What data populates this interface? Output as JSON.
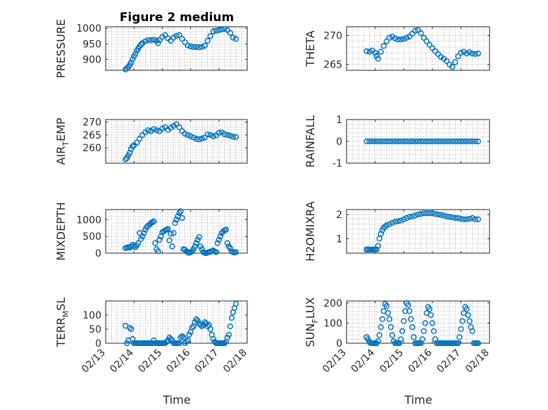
{
  "figure_title": "Figure 2 medium",
  "x_label": "Time",
  "x_ticks": [
    "02/13",
    "02/14",
    "02/15",
    "02/16",
    "02/17",
    "02/18"
  ],
  "chart_data": [
    {
      "type": "scatter",
      "ylabel": "PRESSURE",
      "title": "Figure 2 medium",
      "xlim": [
        0,
        5
      ],
      "ylim": [
        865,
        1005
      ],
      "yticks": [
        900,
        950,
        1000
      ],
      "grid": true,
      "x": [
        0.7,
        0.75,
        0.8,
        0.85,
        0.9,
        0.95,
        1.0,
        1.05,
        1.1,
        1.15,
        1.2,
        1.25,
        1.3,
        1.4,
        1.5,
        1.6,
        1.7,
        1.8,
        1.85,
        1.9,
        2.0,
        2.1,
        2.2,
        2.3,
        2.4,
        2.5,
        2.6,
        2.7,
        2.8,
        2.9,
        3.0,
        3.1,
        3.2,
        3.3,
        3.4,
        3.5,
        3.6,
        3.7,
        3.8,
        3.9,
        4.0,
        4.1,
        4.2,
        4.3,
        4.4,
        4.5,
        4.6
      ],
      "y": [
        868,
        872,
        876,
        882,
        890,
        900,
        910,
        918,
        928,
        935,
        942,
        948,
        952,
        958,
        962,
        962,
        963,
        960,
        952,
        962,
        972,
        978,
        968,
        960,
        970,
        976,
        978,
        966,
        955,
        945,
        942,
        940,
        940,
        939,
        940,
        944,
        960,
        975,
        990,
        992,
        994,
        996,
        998,
        994,
        985,
        970,
        966
      ]
    },
    {
      "type": "scatter",
      "ylabel": "THETA",
      "xlim": [
        0,
        5
      ],
      "ylim": [
        264,
        271.5
      ],
      "yticks": [
        265,
        270
      ],
      "grid": true,
      "x": [
        0.7,
        0.8,
        0.9,
        1.0,
        1.05,
        1.1,
        1.2,
        1.3,
        1.4,
        1.5,
        1.6,
        1.7,
        1.8,
        1.9,
        2.0,
        2.1,
        2.2,
        2.3,
        2.4,
        2.5,
        2.6,
        2.7,
        2.8,
        2.9,
        3.0,
        3.1,
        3.2,
        3.3,
        3.4,
        3.5,
        3.6,
        3.7,
        3.8,
        3.9,
        4.0,
        4.1,
        4.2,
        4.3,
        4.4,
        4.5,
        4.6
      ],
      "y": [
        267.3,
        267.2,
        267.4,
        267.0,
        266.5,
        266.0,
        267.2,
        268.2,
        269.0,
        269.6,
        269.8,
        269.5,
        269.3,
        269.3,
        269.4,
        269.6,
        269.8,
        270.3,
        270.8,
        270.9,
        270.4,
        269.6,
        269.0,
        268.4,
        267.8,
        267.3,
        266.8,
        266.3,
        266.0,
        265.6,
        265.0,
        264.6,
        265.4,
        266.4,
        267.0,
        267.2,
        266.9,
        267.1,
        266.9,
        266.8,
        266.9
      ]
    },
    {
      "type": "scatter",
      "ylabel": "AIR_TEMP",
      "xlim": [
        0,
        5
      ],
      "ylim": [
        254,
        271
      ],
      "yticks": [
        260,
        265,
        270
      ],
      "grid": true,
      "x": [
        0.7,
        0.75,
        0.8,
        0.85,
        0.9,
        0.95,
        1.0,
        1.1,
        1.2,
        1.3,
        1.4,
        1.5,
        1.6,
        1.7,
        1.8,
        1.9,
        2.0,
        2.1,
        2.2,
        2.3,
        2.4,
        2.5,
        2.6,
        2.7,
        2.8,
        2.9,
        3.0,
        3.1,
        3.2,
        3.3,
        3.4,
        3.5,
        3.6,
        3.7,
        3.8,
        3.9,
        4.0,
        4.1,
        4.2,
        4.3,
        4.4,
        4.5,
        4.6
      ],
      "y": [
        255.5,
        256.0,
        257.0,
        258.0,
        259.5,
        260.5,
        261.0,
        262.0,
        263.5,
        265.0,
        266.0,
        266.8,
        266.5,
        267.3,
        266.8,
        266.5,
        267.5,
        268.0,
        267.0,
        267.8,
        268.5,
        269.2,
        268.0,
        266.5,
        265.5,
        265.0,
        264.5,
        264.0,
        263.5,
        263.3,
        263.6,
        264.0,
        265.2,
        265.0,
        264.5,
        264.8,
        265.8,
        266.0,
        265.3,
        265.0,
        264.7,
        264.3,
        264.2
      ]
    },
    {
      "type": "scatter",
      "ylabel": "RAINFALL",
      "xlim": [
        0,
        5
      ],
      "ylim": [
        -1,
        1
      ],
      "yticks": [
        -1,
        0,
        1
      ],
      "grid": true,
      "x": [
        0.7,
        0.8,
        0.9,
        1.0,
        1.1,
        1.2,
        1.3,
        1.4,
        1.5,
        1.6,
        1.7,
        1.8,
        1.9,
        2.0,
        2.1,
        2.2,
        2.3,
        2.4,
        2.5,
        2.6,
        2.7,
        2.8,
        2.9,
        3.0,
        3.1,
        3.2,
        3.3,
        3.4,
        3.5,
        3.6,
        3.7,
        3.8,
        3.9,
        4.0,
        4.1,
        4.2,
        4.3,
        4.4,
        4.5,
        4.6
      ],
      "y": [
        0,
        0,
        0,
        0,
        0,
        0,
        0,
        0,
        0,
        0,
        0,
        0,
        0,
        0,
        0,
        0,
        0,
        0,
        0,
        0,
        0,
        0,
        0,
        0,
        0,
        0,
        0,
        0,
        0,
        0,
        0,
        0,
        0,
        0,
        0,
        0,
        0,
        0,
        0,
        0
      ]
    },
    {
      "type": "scatter",
      "ylabel": "MIXDEPTH",
      "xlim": [
        0,
        5
      ],
      "ylim": [
        0,
        1300
      ],
      "yticks": [
        0,
        500,
        1000
      ],
      "grid": true,
      "x": [
        0.7,
        0.75,
        0.8,
        0.85,
        0.9,
        0.95,
        1.0,
        1.05,
        1.1,
        1.15,
        1.2,
        1.25,
        1.3,
        1.35,
        1.4,
        1.45,
        1.5,
        1.55,
        1.6,
        1.65,
        1.7,
        1.75,
        1.8,
        1.85,
        1.9,
        1.95,
        2.0,
        2.05,
        2.1,
        2.15,
        2.2,
        2.25,
        2.3,
        2.35,
        2.4,
        2.45,
        2.5,
        2.55,
        2.6,
        2.65,
        2.7,
        2.75,
        2.8,
        2.85,
        2.9,
        2.95,
        3.0,
        3.05,
        3.1,
        3.15,
        3.2,
        3.25,
        3.3,
        3.35,
        3.4,
        3.45,
        3.5,
        3.55,
        3.6,
        3.65,
        3.7,
        3.75,
        3.8,
        3.85,
        3.9,
        3.95,
        4.0,
        4.05,
        4.1,
        4.15,
        4.2,
        4.25,
        4.3,
        4.35,
        4.4,
        4.45,
        4.5,
        4.55,
        4.6
      ],
      "y": [
        150,
        170,
        180,
        160,
        200,
        250,
        210,
        180,
        230,
        300,
        600,
        420,
        500,
        600,
        700,
        780,
        820,
        850,
        900,
        920,
        950,
        300,
        120,
        60,
        400,
        500,
        620,
        650,
        680,
        700,
        720,
        380,
        580,
        200,
        600,
        900,
        1000,
        1100,
        1200,
        1250,
        1050,
        120,
        100,
        60,
        20,
        10,
        30,
        50,
        120,
        200,
        300,
        400,
        480,
        200,
        120,
        30,
        10,
        0,
        20,
        30,
        50,
        60,
        80,
        50,
        30,
        300,
        400,
        500,
        600,
        650,
        680,
        700,
        300,
        200,
        150,
        50,
        30,
        20,
        30
      ]
    },
    {
      "type": "scatter",
      "ylabel": "H2OMIXRA",
      "xlim": [
        0,
        5
      ],
      "ylim": [
        0.4,
        2.2
      ],
      "yticks": [
        1,
        2
      ],
      "grid": true,
      "x": [
        0.7,
        0.75,
        0.8,
        0.85,
        0.9,
        0.95,
        1.0,
        1.05,
        1.1,
        1.15,
        1.2,
        1.25,
        1.3,
        1.35,
        1.4,
        1.5,
        1.6,
        1.7,
        1.8,
        1.9,
        2.0,
        2.1,
        2.2,
        2.3,
        2.4,
        2.5,
        2.6,
        2.7,
        2.8,
        2.9,
        3.0,
        3.1,
        3.2,
        3.3,
        3.4,
        3.5,
        3.6,
        3.7,
        3.8,
        3.9,
        4.0,
        4.1,
        4.2,
        4.3,
        4.4,
        4.5,
        4.6
      ],
      "y": [
        0.55,
        0.55,
        0.55,
        0.55,
        0.55,
        0.55,
        0.55,
        0.55,
        0.7,
        1.0,
        1.2,
        1.35,
        1.45,
        1.5,
        1.55,
        1.6,
        1.65,
        1.7,
        1.72,
        1.75,
        1.8,
        1.85,
        1.9,
        1.92,
        1.95,
        2.0,
        2.02,
        2.05,
        2.05,
        2.05,
        2.05,
        2.02,
        2.0,
        1.98,
        1.95,
        1.92,
        1.9,
        1.88,
        1.85,
        1.85,
        1.82,
        1.8,
        1.8,
        1.82,
        1.85,
        1.8,
        1.8
      ]
    },
    {
      "type": "scatter",
      "ylabel": "TERR_MSL",
      "xlim": [
        0,
        5
      ],
      "ylim": [
        0,
        150
      ],
      "yticks": [
        0,
        50,
        100
      ],
      "grid": true,
      "x": [
        0.7,
        0.75,
        0.8,
        0.85,
        0.9,
        0.95,
        1.0,
        1.05,
        1.1,
        1.15,
        1.2,
        1.25,
        1.3,
        1.35,
        1.4,
        1.45,
        1.5,
        1.55,
        1.6,
        1.65,
        1.7,
        1.75,
        1.8,
        1.85,
        1.9,
        1.95,
        2.0,
        2.05,
        2.1,
        2.15,
        2.2,
        2.25,
        2.3,
        2.35,
        2.4,
        2.45,
        2.5,
        2.55,
        2.6,
        2.65,
        2.7,
        2.75,
        2.8,
        2.85,
        2.9,
        2.95,
        3.0,
        3.05,
        3.1,
        3.15,
        3.2,
        3.25,
        3.3,
        3.35,
        3.4,
        3.45,
        3.5,
        3.55,
        3.6,
        3.65,
        3.7,
        3.75,
        3.8,
        3.85,
        3.9,
        3.95,
        4.0,
        4.05,
        4.1,
        4.15,
        4.2,
        4.25,
        4.3,
        4.35,
        4.4,
        4.45,
        4.5,
        4.55,
        4.6
      ],
      "y": [
        62,
        0,
        10,
        55,
        50,
        15,
        0,
        0,
        0,
        0,
        0,
        0,
        0,
        0,
        0,
        0,
        0,
        0,
        0,
        0,
        10,
        0,
        0,
        0,
        0,
        0,
        0,
        0,
        0,
        5,
        10,
        20,
        15,
        10,
        0,
        0,
        0,
        0,
        0,
        20,
        25,
        20,
        0,
        5,
        10,
        30,
        40,
        55,
        60,
        75,
        85,
        80,
        70,
        65,
        60,
        65,
        75,
        70,
        60,
        65,
        50,
        30,
        15,
        5,
        0,
        0,
        0,
        0,
        0,
        0,
        0,
        5,
        20,
        30,
        60,
        90,
        110,
        125,
        140
      ]
    },
    {
      "type": "scatter",
      "ylabel": "SUN_FLUX",
      "xlim": [
        0,
        5
      ],
      "ylim": [
        0,
        210
      ],
      "yticks": [
        0,
        100,
        200
      ],
      "grid": true,
      "x": [
        0.7,
        0.75,
        0.8,
        0.85,
        0.9,
        0.95,
        1.0,
        1.05,
        1.1,
        1.15,
        1.2,
        1.25,
        1.3,
        1.35,
        1.4,
        1.45,
        1.5,
        1.55,
        1.6,
        1.65,
        1.7,
        1.75,
        1.8,
        1.85,
        1.9,
        1.95,
        2.0,
        2.05,
        2.1,
        2.15,
        2.2,
        2.25,
        2.3,
        2.35,
        2.4,
        2.45,
        2.5,
        2.55,
        2.6,
        2.65,
        2.7,
        2.75,
        2.8,
        2.85,
        2.9,
        2.95,
        3.0,
        3.05,
        3.1,
        3.15,
        3.2,
        3.25,
        3.3,
        3.35,
        3.4,
        3.45,
        3.5,
        3.55,
        3.6,
        3.65,
        3.7,
        3.75,
        3.8,
        3.85,
        3.9,
        3.95,
        4.0,
        4.05,
        4.1,
        4.15,
        4.2,
        4.25,
        4.3,
        4.35,
        4.4,
        4.45,
        4.5,
        4.55,
        4.6
      ],
      "y": [
        30,
        20,
        5,
        0,
        0,
        0,
        0,
        0,
        10,
        40,
        80,
        120,
        160,
        195,
        185,
        150,
        120,
        80,
        40,
        10,
        0,
        0,
        0,
        0,
        20,
        60,
        110,
        160,
        200,
        190,
        160,
        120,
        80,
        30,
        0,
        0,
        0,
        0,
        0,
        20,
        60,
        100,
        150,
        180,
        170,
        140,
        100,
        60,
        20,
        0,
        0,
        0,
        0,
        0,
        0,
        0,
        0,
        0,
        0,
        0,
        0,
        0,
        0,
        0,
        0,
        30,
        70,
        110,
        150,
        180,
        170,
        140,
        110,
        80,
        60,
        0,
        0,
        0,
        0
      ]
    }
  ]
}
